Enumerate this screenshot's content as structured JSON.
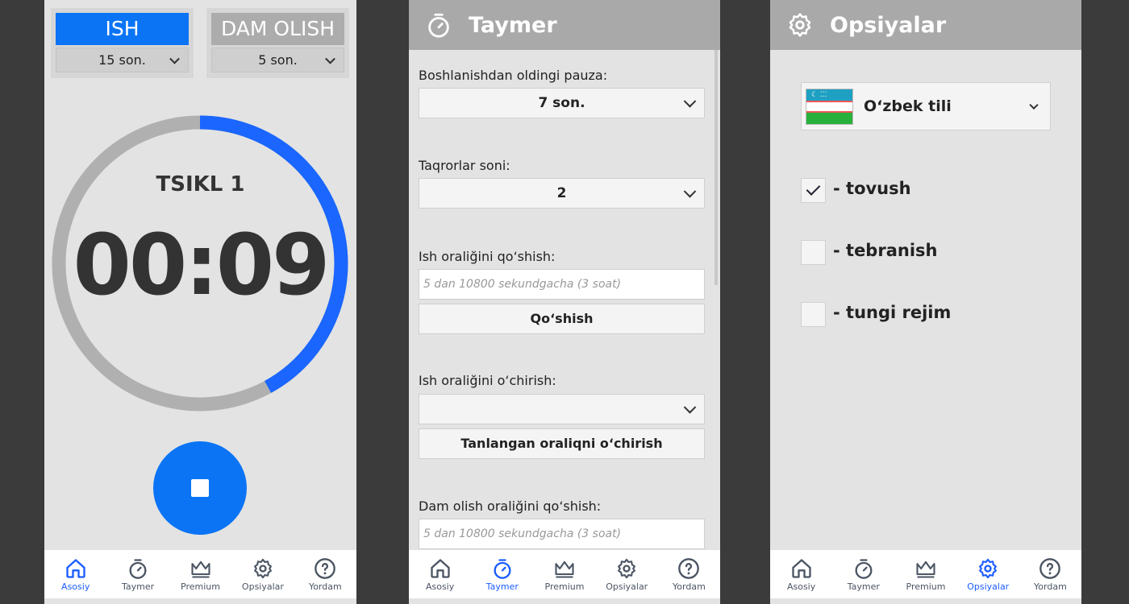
{
  "main": {
    "work_label": "ISH",
    "work_value": "15 son.",
    "rest_label": "DAM OLISH",
    "rest_value": "5 son.",
    "cycle": "TSIKL 1",
    "time": "00:09",
    "progress": 0.42,
    "accent": "#1a66ff"
  },
  "timer": {
    "title": "Taymer",
    "pre_pause_label": "Boshlanishdan oldingi pauza:",
    "pre_pause_value": "7 son.",
    "repeats_label": "Taqrorlar soni:",
    "repeats_value": "2",
    "add_work_label": "Ish oraliğini qo‘shish:",
    "add_work_placeholder": "5 dan 10800 sekundgacha (3 soat)",
    "add_button": "Qo‘shish",
    "del_work_label": "Ish oraliğini o‘chirish:",
    "del_work_value": "",
    "del_button": "Tanlangan oraliqni o‘chirish",
    "add_rest_label": "Dam olish oraliğini qo‘shish:",
    "add_rest_placeholder": "5 dan 10800 sekundgacha (3 soat)"
  },
  "options": {
    "title": "Opsiyalar",
    "language": "O‘zbek tili",
    "items": [
      {
        "label": "- tovush",
        "checked": true
      },
      {
        "label": "- tebranish",
        "checked": false
      },
      {
        "label": "- tungi rejim",
        "checked": false
      }
    ]
  },
  "nav": {
    "items": [
      {
        "label": "Asosiy",
        "icon": "home-icon"
      },
      {
        "label": "Taymer",
        "icon": "stopwatch-icon"
      },
      {
        "label": "Premium",
        "icon": "crown-icon"
      },
      {
        "label": "Opsiyalar",
        "icon": "gear-icon"
      },
      {
        "label": "Yordam",
        "icon": "help-icon"
      }
    ]
  }
}
